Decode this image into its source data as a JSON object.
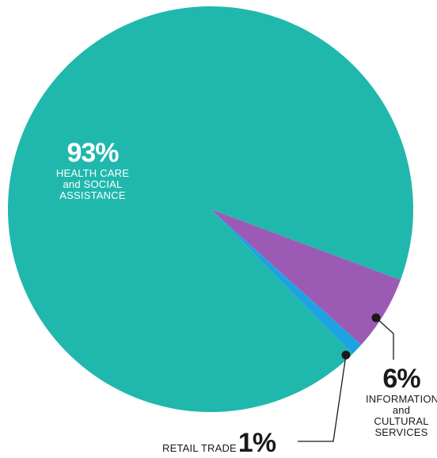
{
  "chart_data": {
    "type": "pie",
    "title": "",
    "slices": [
      {
        "name": "HEALTH CARE and SOCIAL ASSISTANCE",
        "value": 93,
        "label": "93%",
        "color": "#20b8ad"
      },
      {
        "name": "INFORMATION and CULTURAL SERVICES",
        "value": 6,
        "label": "6%",
        "color": "#9b5bb4"
      },
      {
        "name": "RETAIL TRADE",
        "value": 1,
        "label": "1%",
        "color": "#1ea3e2"
      }
    ],
    "labels": {
      "health": {
        "pct": "93%",
        "lines": [
          "HEALTH CARE",
          "and SOCIAL",
          "ASSISTANCE"
        ]
      },
      "info": {
        "pct": "6%",
        "lines": [
          "INFORMATION",
          "and CULTURAL",
          "SERVICES"
        ]
      },
      "retail": {
        "pct": "1%",
        "text": "RETAIL TRADE"
      }
    }
  }
}
